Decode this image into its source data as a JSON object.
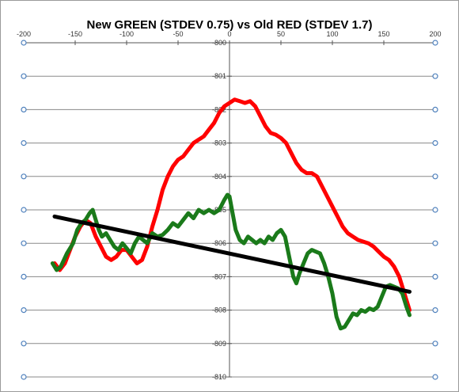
{
  "chart_data": {
    "type": "line",
    "title": "New GREEN (STDEV 0.75) vs Old RED (STDEV 1.7)",
    "xlabel": "",
    "ylabel": "",
    "xlim": [
      -200,
      200
    ],
    "ylim": [
      -810,
      -800
    ],
    "x_ticks": [
      -200,
      -150,
      -100,
      -50,
      0,
      50,
      100,
      150,
      200
    ],
    "x_tick_labels": [
      "-200",
      "-150",
      "-100",
      "-50",
      "0",
      "50",
      "100",
      "150",
      "200"
    ],
    "y_ticks": [
      -800,
      -801,
      -802,
      -803,
      -804,
      -805,
      -806,
      -807,
      -808,
      -809,
      -810
    ],
    "y_tick_labels": [
      "-800",
      "-801",
      "-802",
      "-803",
      "-804",
      "-805",
      "-806",
      "-807",
      "-808",
      "-809",
      "-810"
    ],
    "grid": "horizontal",
    "legend": "none",
    "series": [
      {
        "color": "#ff0000",
        "points": [
          [
            -170,
            -806.6
          ],
          [
            -165,
            -806.8
          ],
          [
            -160,
            -806.6
          ],
          [
            -155,
            -806.2
          ],
          [
            -150,
            -805.8
          ],
          [
            -145,
            -805.5
          ],
          [
            -140,
            -805.3
          ],
          [
            -135,
            -805.4
          ],
          [
            -130,
            -805.8
          ],
          [
            -125,
            -806.1
          ],
          [
            -120,
            -806.4
          ],
          [
            -115,
            -806.5
          ],
          [
            -110,
            -806.4
          ],
          [
            -105,
            -806.2
          ],
          [
            -100,
            -806.2
          ],
          [
            -95,
            -806.4
          ],
          [
            -90,
            -806.6
          ],
          [
            -85,
            -806.5
          ],
          [
            -80,
            -806.1
          ],
          [
            -75,
            -805.5
          ],
          [
            -70,
            -805.0
          ],
          [
            -65,
            -804.4
          ],
          [
            -60,
            -804.0
          ],
          [
            -55,
            -803.7
          ],
          [
            -50,
            -803.5
          ],
          [
            -45,
            -803.4
          ],
          [
            -40,
            -803.2
          ],
          [
            -35,
            -803.0
          ],
          [
            -30,
            -802.9
          ],
          [
            -25,
            -802.8
          ],
          [
            -20,
            -802.6
          ],
          [
            -15,
            -802.4
          ],
          [
            -10,
            -802.1
          ],
          [
            -5,
            -801.9
          ],
          [
            0,
            -801.8
          ],
          [
            5,
            -801.7
          ],
          [
            10,
            -801.75
          ],
          [
            15,
            -801.8
          ],
          [
            20,
            -801.75
          ],
          [
            25,
            -801.9
          ],
          [
            30,
            -802.2
          ],
          [
            35,
            -802.5
          ],
          [
            40,
            -802.7
          ],
          [
            45,
            -802.75
          ],
          [
            50,
            -802.85
          ],
          [
            55,
            -803.0
          ],
          [
            60,
            -803.3
          ],
          [
            65,
            -803.6
          ],
          [
            70,
            -803.8
          ],
          [
            75,
            -803.9
          ],
          [
            80,
            -803.9
          ],
          [
            85,
            -804.0
          ],
          [
            90,
            -804.3
          ],
          [
            95,
            -804.6
          ],
          [
            100,
            -804.9
          ],
          [
            105,
            -805.2
          ],
          [
            110,
            -805.5
          ],
          [
            115,
            -805.7
          ],
          [
            120,
            -805.8
          ],
          [
            125,
            -805.9
          ],
          [
            130,
            -805.95
          ],
          [
            135,
            -806.0
          ],
          [
            140,
            -806.1
          ],
          [
            145,
            -806.25
          ],
          [
            150,
            -806.4
          ],
          [
            155,
            -806.5
          ],
          [
            160,
            -806.7
          ],
          [
            165,
            -807.0
          ],
          [
            170,
            -807.5
          ],
          [
            175,
            -808.0
          ]
        ]
      },
      {
        "color": "#1a7a1a",
        "points": [
          [
            -172,
            -806.6
          ],
          [
            -168,
            -806.8
          ],
          [
            -164,
            -806.7
          ],
          [
            -158,
            -806.3
          ],
          [
            -152,
            -806.0
          ],
          [
            -148,
            -805.6
          ],
          [
            -144,
            -805.4
          ],
          [
            -140,
            -805.3
          ],
          [
            -136,
            -805.1
          ],
          [
            -133,
            -805.0
          ],
          [
            -130,
            -805.3
          ],
          [
            -127,
            -805.6
          ],
          [
            -124,
            -805.8
          ],
          [
            -120,
            -805.7
          ],
          [
            -116,
            -805.9
          ],
          [
            -112,
            -806.1
          ],
          [
            -108,
            -806.2
          ],
          [
            -104,
            -806.0
          ],
          [
            -100,
            -806.15
          ],
          [
            -96,
            -806.3
          ],
          [
            -92,
            -806.0
          ],
          [
            -88,
            -805.8
          ],
          [
            -84,
            -805.9
          ],
          [
            -80,
            -806.0
          ],
          [
            -75,
            -805.7
          ],
          [
            -70,
            -805.8
          ],
          [
            -65,
            -805.75
          ],
          [
            -60,
            -805.6
          ],
          [
            -55,
            -805.4
          ],
          [
            -50,
            -805.5
          ],
          [
            -45,
            -805.3
          ],
          [
            -40,
            -805.1
          ],
          [
            -35,
            -805.25
          ],
          [
            -30,
            -805.0
          ],
          [
            -25,
            -805.1
          ],
          [
            -20,
            -805.0
          ],
          [
            -15,
            -805.1
          ],
          [
            -10,
            -805.0
          ],
          [
            -5,
            -804.7
          ],
          [
            -2,
            -804.55
          ],
          [
            0,
            -804.6
          ],
          [
            3,
            -805.1
          ],
          [
            6,
            -805.6
          ],
          [
            10,
            -805.9
          ],
          [
            14,
            -806.0
          ],
          [
            18,
            -805.8
          ],
          [
            22,
            -805.9
          ],
          [
            26,
            -806.0
          ],
          [
            30,
            -805.9
          ],
          [
            34,
            -806.0
          ],
          [
            38,
            -805.8
          ],
          [
            42,
            -805.9
          ],
          [
            46,
            -805.7
          ],
          [
            50,
            -805.6
          ],
          [
            54,
            -805.8
          ],
          [
            58,
            -806.4
          ],
          [
            62,
            -807.0
          ],
          [
            65,
            -807.2
          ],
          [
            68,
            -806.9
          ],
          [
            72,
            -806.6
          ],
          [
            76,
            -806.3
          ],
          [
            80,
            -806.2
          ],
          [
            84,
            -806.25
          ],
          [
            88,
            -806.3
          ],
          [
            92,
            -806.6
          ],
          [
            96,
            -807.0
          ],
          [
            100,
            -807.5
          ],
          [
            104,
            -808.2
          ],
          [
            108,
            -808.55
          ],
          [
            112,
            -808.5
          ],
          [
            116,
            -808.3
          ],
          [
            120,
            -808.1
          ],
          [
            124,
            -808.15
          ],
          [
            128,
            -808.0
          ],
          [
            132,
            -808.05
          ],
          [
            136,
            -807.95
          ],
          [
            140,
            -808.0
          ],
          [
            144,
            -807.9
          ],
          [
            148,
            -807.6
          ],
          [
            152,
            -807.3
          ],
          [
            156,
            -807.25
          ],
          [
            160,
            -807.3
          ],
          [
            164,
            -807.35
          ],
          [
            168,
            -807.5
          ],
          [
            172,
            -807.9
          ],
          [
            175,
            -808.15
          ]
        ]
      },
      {
        "color": "#000000",
        "points": [
          [
            -170,
            -805.2
          ],
          [
            175,
            -807.45
          ]
        ]
      }
    ]
  }
}
